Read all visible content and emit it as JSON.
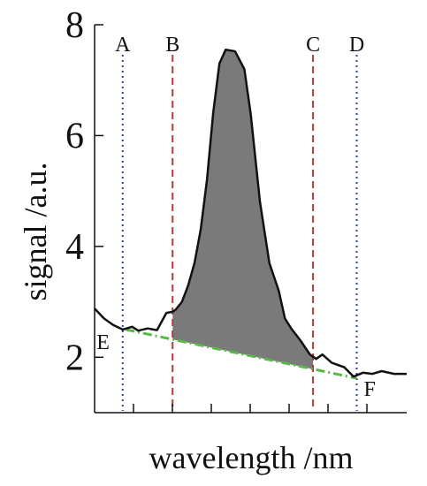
{
  "chart_data": {
    "type": "line",
    "title": "",
    "xlabel": "wavelength /nm",
    "ylabel": "signal /a.u.",
    "xlim": [
      0,
      10
    ],
    "ylim": [
      1.0,
      8.0
    ],
    "y_ticks": [
      2,
      4,
      6,
      8
    ],
    "x_tick_count": 7,
    "x_tick_labels_shown": false,
    "grid": false,
    "series": [
      {
        "x": [
          0.0,
          0.3,
          0.6,
          0.9,
          1.2,
          1.4,
          1.7,
          2.0,
          2.3,
          2.5,
          2.6,
          2.8,
          3.0,
          3.2,
          3.4,
          3.6,
          3.8,
          4.0,
          4.2,
          4.5,
          4.8,
          5.0,
          5.3,
          5.6,
          5.9,
          6.1,
          6.3,
          6.6,
          6.9,
          7.1,
          7.3,
          7.6,
          8.0,
          8.3,
          8.6,
          8.9,
          9.2,
          9.6,
          10.0
        ],
        "y": [
          2.88,
          2.7,
          2.58,
          2.5,
          2.55,
          2.48,
          2.52,
          2.49,
          2.8,
          2.82,
          2.86,
          3.0,
          3.3,
          3.7,
          4.3,
          5.2,
          6.4,
          7.3,
          7.55,
          7.52,
          7.2,
          6.4,
          4.8,
          3.7,
          3.2,
          2.7,
          2.52,
          2.3,
          2.05,
          1.97,
          2.05,
          1.9,
          1.82,
          1.65,
          1.72,
          1.7,
          1.75,
          1.7,
          1.7
        ]
      }
    ],
    "markers": [
      {
        "label": "A",
        "x": 0.9,
        "style": "dotted",
        "color": "#2f3ea8"
      },
      {
        "label": "B",
        "x": 2.5,
        "style": "dashed",
        "color": "#b43a3a"
      },
      {
        "label": "C",
        "x": 7.0,
        "style": "dashed",
        "color": "#b43a3a"
      },
      {
        "label": "D",
        "x": 8.4,
        "style": "dotted",
        "color": "#2f3ea8"
      }
    ],
    "baseline": {
      "from_label": "E",
      "to_label": "F",
      "x": [
        1.0,
        8.4
      ],
      "y": [
        2.5,
        1.62
      ],
      "color": "#5ab84a",
      "style": "dash-dot"
    },
    "fill": {
      "x_range": [
        2.5,
        7.0
      ],
      "color": "#7a7a7a"
    }
  }
}
